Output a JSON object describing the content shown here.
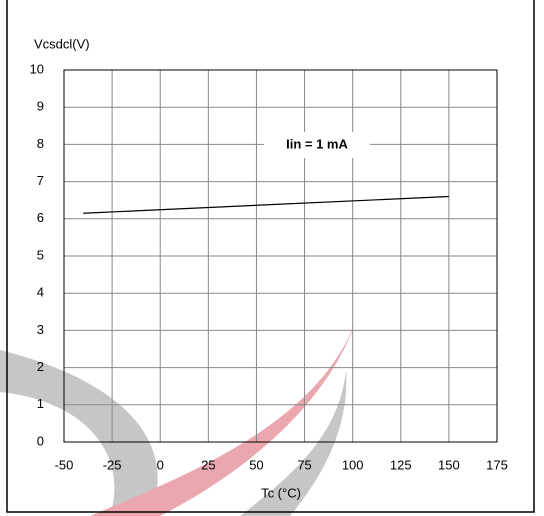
{
  "chart_data": {
    "type": "line",
    "y_label": "Vcsdcl(V)",
    "x_label": "Tc (°C)",
    "annotation": "Iin = 1 mA",
    "x": [
      -40,
      150
    ],
    "values": [
      6.15,
      6.6
    ],
    "color": "#000000",
    "xlim": [
      -50,
      175
    ],
    "xticks": [
      -50,
      -25,
      0,
      25,
      50,
      75,
      100,
      125,
      150,
      175
    ],
    "ylim": [
      0,
      10
    ],
    "yticks": [
      0,
      1,
      2,
      3,
      4,
      5,
      6,
      7,
      8,
      9,
      10
    ],
    "grid": true
  }
}
